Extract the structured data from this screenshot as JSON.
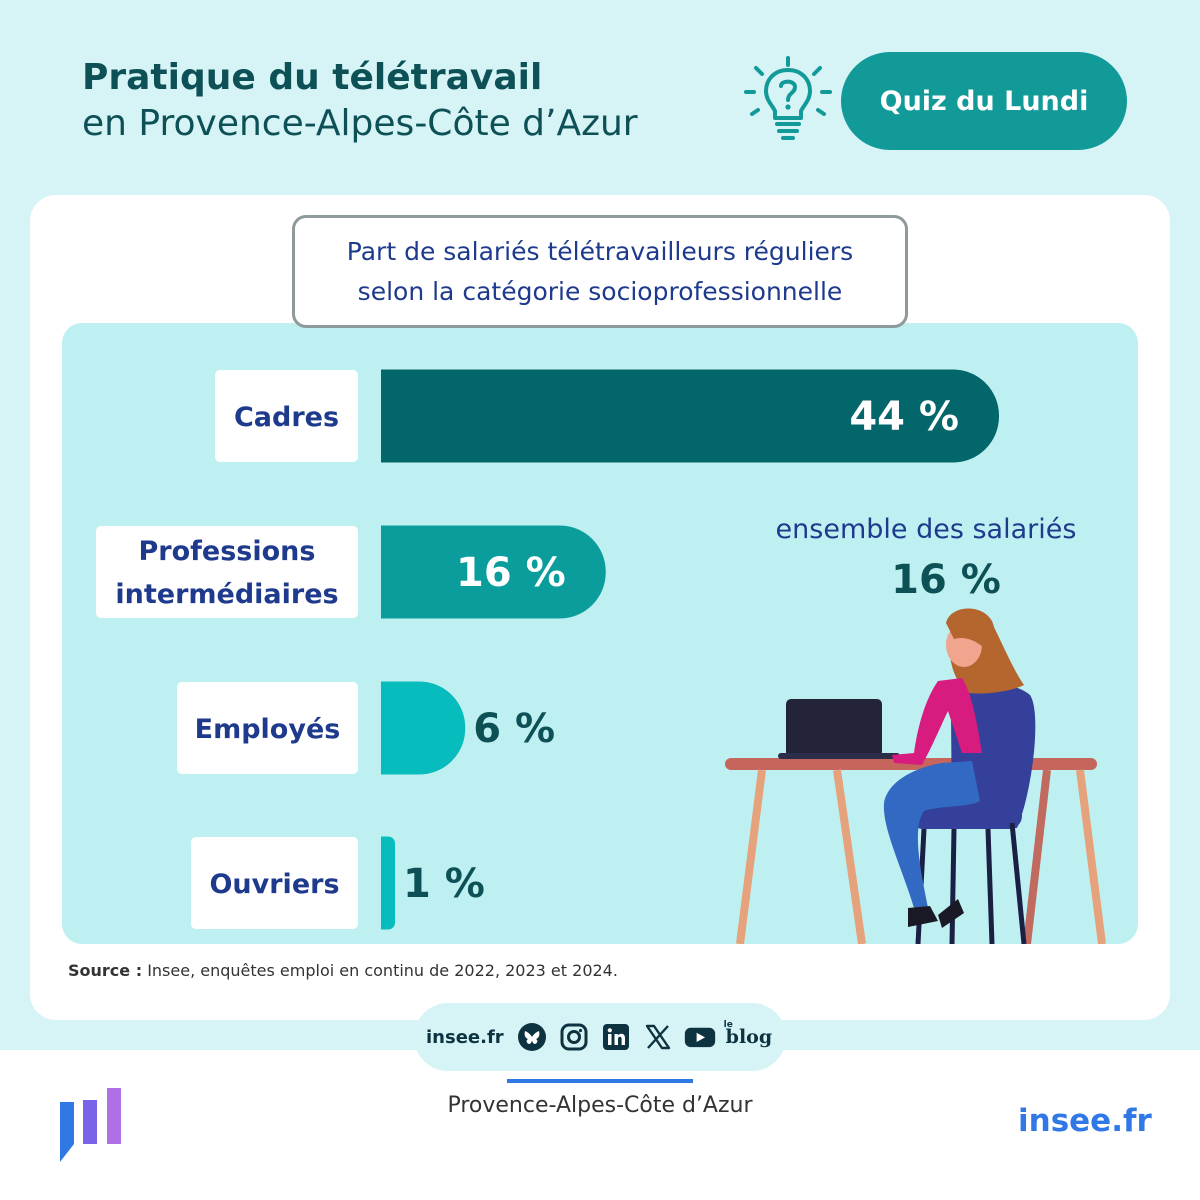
{
  "header": {
    "title_line1": "Pratique du télétravail",
    "title_line2": "en Provence-Alpes-Côte d’Azur",
    "quiz_label": "Quiz du Lundi"
  },
  "chart_box": {
    "subtitle_line1": "Part de salariés télétravailleurs réguliers",
    "subtitle_line2": "selon la catégorie socioprofessionnelle"
  },
  "chart_data": {
    "type": "bar",
    "orientation": "horizontal",
    "title": "Part de salariés télétravailleurs réguliers selon la catégorie socioprofessionnelle",
    "categories": [
      [
        "Cadres"
      ],
      [
        "Professions",
        "intermédiaires"
      ],
      [
        "Employés"
      ],
      [
        "Ouvriers"
      ]
    ],
    "values": [
      44,
      16,
      6,
      1
    ],
    "value_labels": [
      "44 %",
      "16 %",
      "6 %",
      "1 %"
    ],
    "unit": "%",
    "colors": [
      "#03666a",
      "#0b9d9c",
      "#07bcbc",
      "#07bcbc"
    ],
    "annotation": {
      "label": "ensemble des salariés",
      "value_label": "16 %"
    }
  },
  "source": {
    "label": "Source :",
    "text": " Insee, enquêtes emploi en continu de 2022, 2023 et 2024."
  },
  "social": {
    "site": "insee.fr",
    "icons": [
      "bluesky-icon",
      "instagram-icon",
      "linkedin-icon",
      "x-icon",
      "youtube-icon",
      "blog-icon"
    ],
    "blog_small": "le",
    "blog_text": "blog"
  },
  "footer": {
    "region": "Provence-Alpes-Côte d’Azur",
    "site": "insee.fr"
  },
  "colors": {
    "dark_teal": "#03666a",
    "teal": "#129a99",
    "navy": "#1e3a8c",
    "blue": "#2f78e6"
  }
}
